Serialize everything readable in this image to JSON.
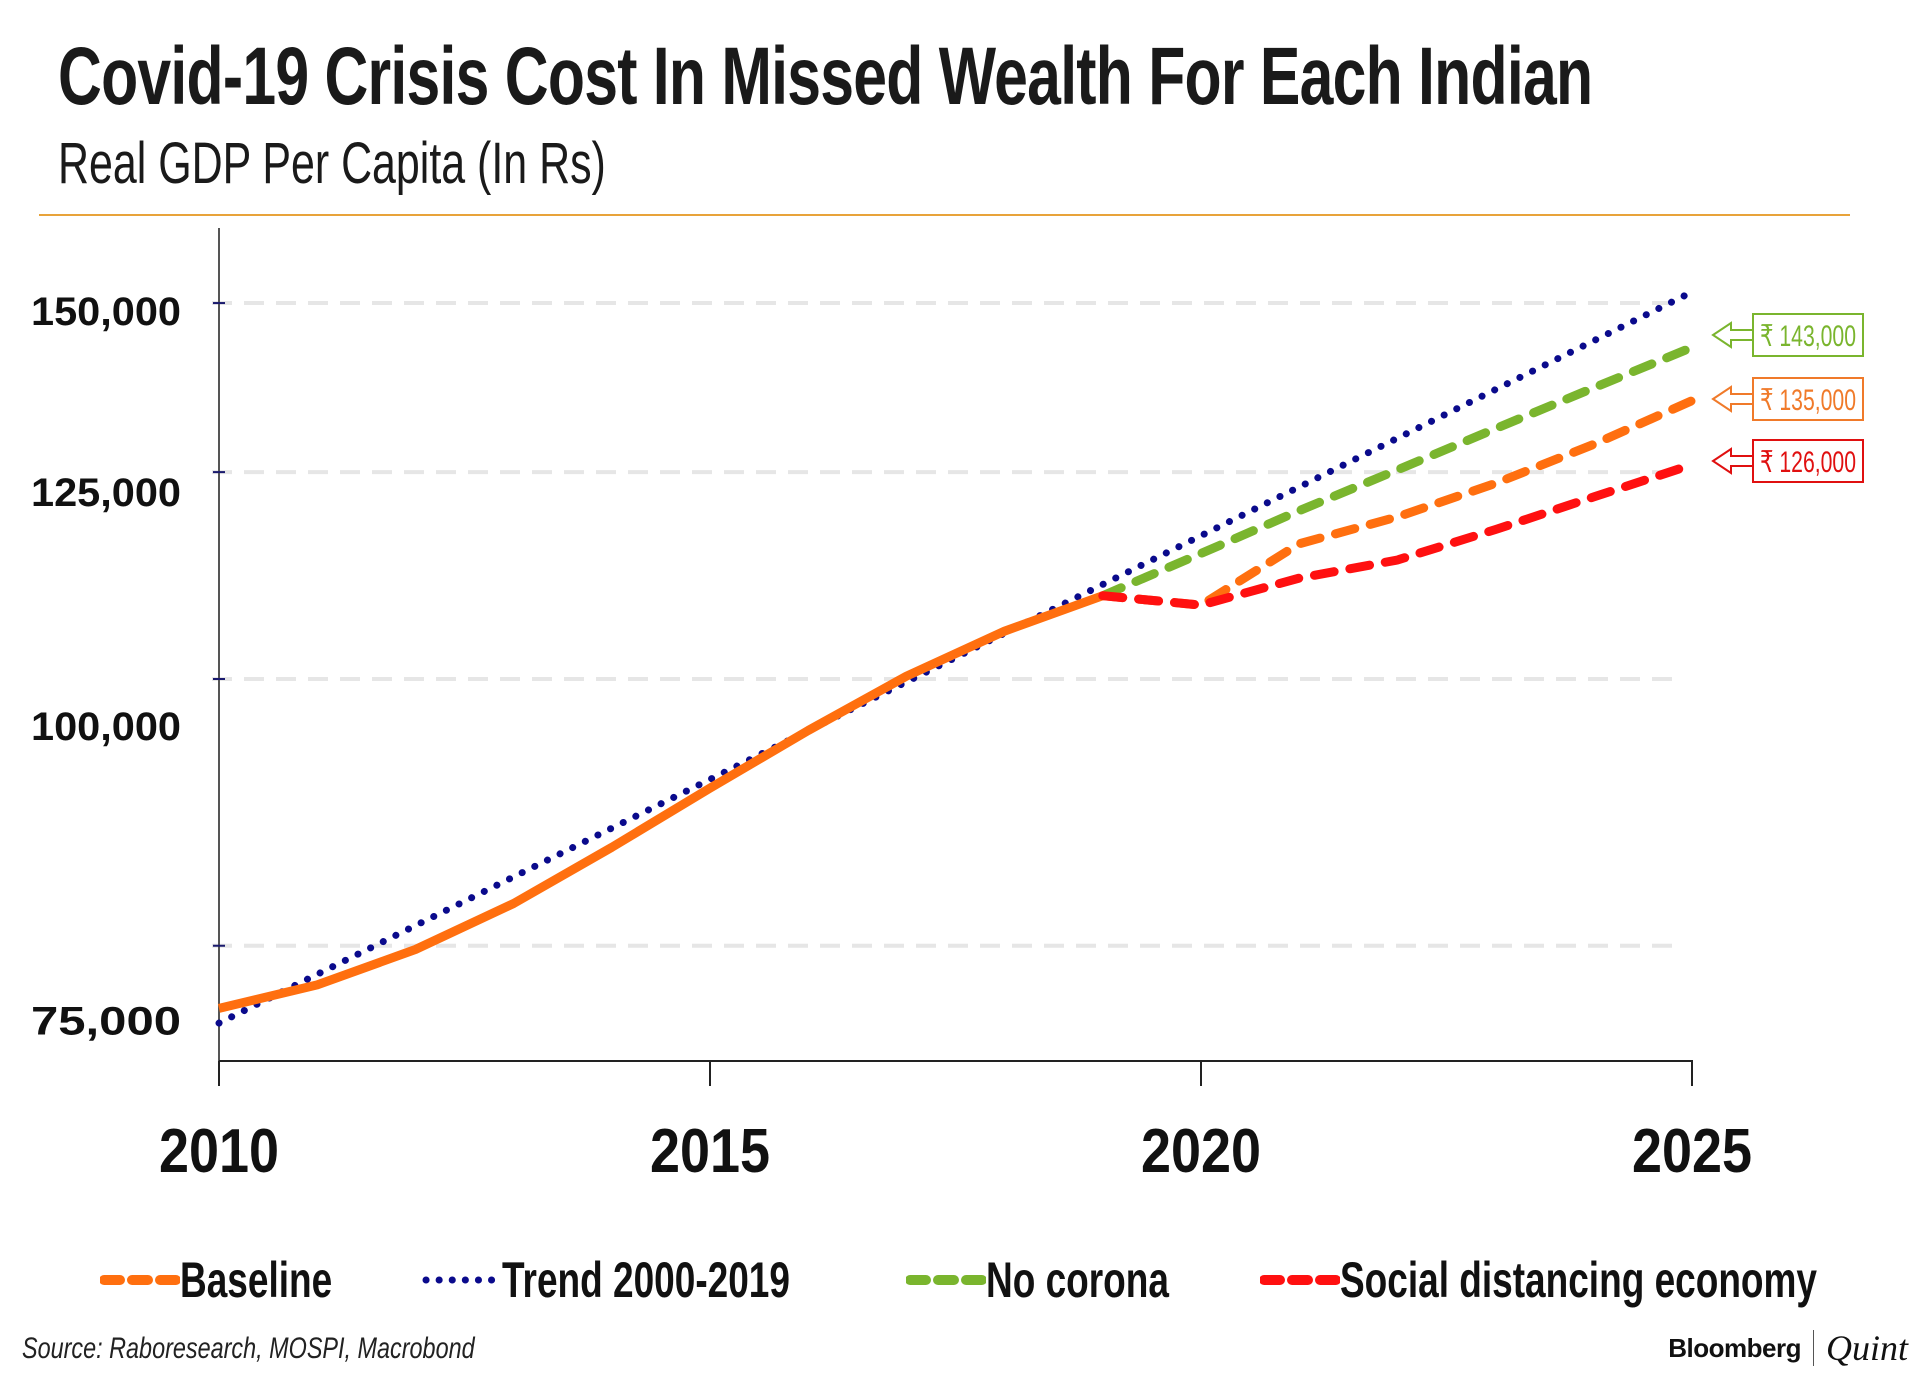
{
  "header": {
    "title": "Covid-19 Crisis Cost In Missed Wealth For Each Indian",
    "subtitle": "Real GDP Per Capita (In Rs)"
  },
  "colors": {
    "rule": "#e8a33a",
    "baseline": "#ff6f0f",
    "trend": "#0a0a8c",
    "no_corona": "#7ab52e",
    "social_distancing": "#ff1010",
    "gridline": "#e6e6e6",
    "axis": "#555555"
  },
  "chart_data": {
    "type": "line",
    "title": "Covid-19 Crisis Cost In Missed Wealth For Each Indian",
    "subtitle": "Real GDP Per Capita (In Rs)",
    "xlabel": "",
    "ylabel": "",
    "yscale": "log",
    "xlim": [
      2010,
      2025
    ],
    "ylim": [
      68000,
      160000
    ],
    "grid": true,
    "x_ticks": [
      2010,
      2015,
      2020,
      2025
    ],
    "x_tick_labels": [
      "2010",
      "2015",
      "2020",
      "2025"
    ],
    "y_ticks": [
      150000,
      125000,
      100000,
      75000
    ],
    "y_tick_labels": [
      "150,000",
      "125,000",
      "100,000",
      "75,000"
    ],
    "legend_position": "bottom",
    "series": [
      {
        "key": "baseline",
        "name": "Baseline",
        "style": "solid-then-dashed",
        "x": [
          2010,
          2011,
          2012,
          2013,
          2014,
          2015,
          2016,
          2017,
          2018,
          2019,
          2020,
          2021,
          2022,
          2023,
          2024,
          2025
        ],
        "values": [
          70100,
          71900,
          74700,
          78500,
          83400,
          88900,
          94600,
          100300,
          105300,
          109400,
          108300,
          115700,
          119100,
          123500,
          128800,
          135000
        ]
      },
      {
        "key": "trend",
        "name": "Trend 2000-2019",
        "style": "dotted",
        "x": [
          2010,
          2025
        ],
        "values": [
          69000,
          151800
        ]
      },
      {
        "key": "no_corona",
        "name": "No corona",
        "style": "dashed",
        "x": [
          2019,
          2020,
          2021,
          2022,
          2023,
          2024,
          2025
        ],
        "values": [
          109400,
          114500,
          119900,
          125300,
          131000,
          136900,
          143000
        ]
      },
      {
        "key": "social_distancing",
        "name": "Social distancing economy",
        "style": "dashed",
        "x": [
          2019,
          2020,
          2021,
          2022,
          2023,
          2024,
          2025
        ],
        "values": [
          109400,
          108300,
          111500,
          113700,
          117500,
          121700,
          126000
        ]
      }
    ],
    "annotations": [
      {
        "series": "no_corona",
        "text": "₹ 143,000",
        "value": 143000
      },
      {
        "series": "baseline",
        "text": "₹ 135,000",
        "value": 135000
      },
      {
        "series": "social_distancing",
        "text": "₹ 126,000",
        "value": 126000
      }
    ]
  },
  "legend": [
    {
      "key": "baseline",
      "label": "Baseline"
    },
    {
      "key": "trend",
      "label": "Trend 2000-2019"
    },
    {
      "key": "no_corona",
      "label": "No corona"
    },
    {
      "key": "social_distancing",
      "label": "Social distancing economy"
    }
  ],
  "footer": {
    "source": "Source: Raboresearch, MOSPI, Macrobond",
    "brand_left": "Bloomberg",
    "brand_right": "Quint"
  }
}
